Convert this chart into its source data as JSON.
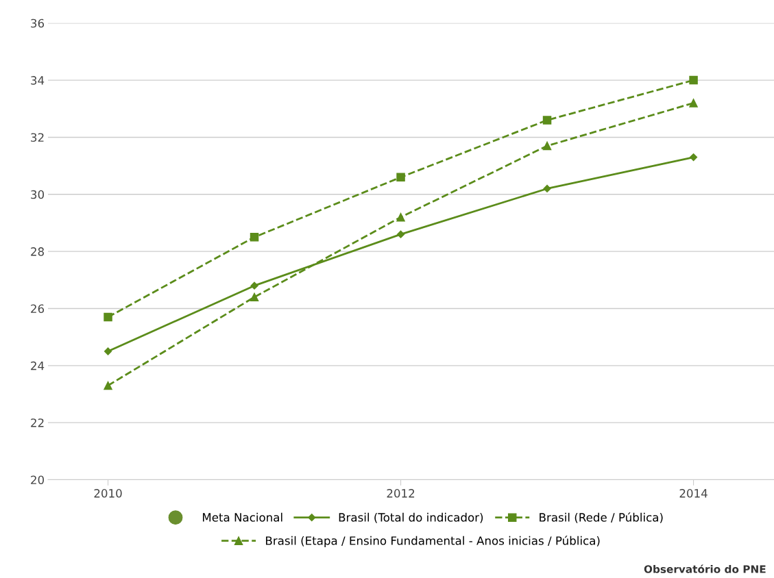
{
  "chart_data": {
    "type": "line",
    "x": [
      2010,
      2011,
      2012,
      2013,
      2014
    ],
    "xlim": [
      2009.59,
      2014.55
    ],
    "xticks": [
      2010,
      2012,
      2014
    ],
    "ylim": [
      20,
      36
    ],
    "yticks": [
      20,
      22,
      24,
      26,
      28,
      30,
      32,
      34,
      36
    ],
    "grid": "y",
    "legend": "bottom",
    "series": [
      {
        "name": "Meta Nacional",
        "color": "#6a8f2e",
        "marker": "circle",
        "line_style": "none",
        "values": [
          null,
          null,
          null,
          null,
          null
        ]
      },
      {
        "name": "Brasil (Total do indicador)",
        "color": "#5b8c1a",
        "marker": "diamond",
        "line_style": "solid",
        "values": [
          24.5,
          26.8,
          28.6,
          30.2,
          31.3
        ]
      },
      {
        "name": "Brasil (Rede / Pública)",
        "color": "#5b8c1a",
        "marker": "square",
        "line_style": "dashed",
        "values": [
          25.7,
          28.5,
          30.6,
          32.6,
          34.0
        ]
      },
      {
        "name": "Brasil (Etapa / Ensino Fundamental - Anos inicias / Pública)",
        "color": "#5b8c1a",
        "marker": "triangle",
        "line_style": "dashed",
        "values": [
          23.3,
          26.4,
          29.2,
          31.7,
          33.2
        ]
      }
    ],
    "annotations": [
      "Observatório do PNE"
    ]
  }
}
